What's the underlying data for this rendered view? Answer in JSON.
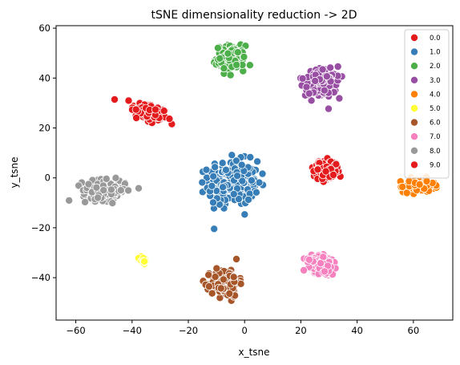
{
  "chart_data": {
    "type": "scatter",
    "title": "tSNE dimensionality reduction -> 2D",
    "xlabel": "x_tsne",
    "ylabel": "y_tsne",
    "xlim": [
      -67,
      74
    ],
    "ylim": [
      -57,
      61
    ],
    "xticks": [
      -60,
      -40,
      -20,
      0,
      20,
      40,
      60
    ],
    "yticks": [
      -40,
      -20,
      0,
      20,
      40,
      60
    ],
    "xtick_labels": [
      "−60",
      "−40",
      "−20",
      "0",
      "20",
      "40",
      "60"
    ],
    "ytick_labels": [
      "−40",
      "−20",
      "0",
      "20",
      "40",
      "60"
    ],
    "grid": false,
    "legend_position": "top-right",
    "series": [
      {
        "name": "0.0",
        "color": "#e41a1c",
        "center": [
          -34,
          26
        ],
        "spread": [
          6,
          3.5
        ],
        "tilt": -0.35,
        "count": 130
      },
      {
        "name": "1.0",
        "color": "#377eb8",
        "center": [
          -4,
          -2
        ],
        "spread": [
          8,
          8
        ],
        "tilt": 0,
        "count": 260
      },
      {
        "name": "2.0",
        "color": "#4daf4a",
        "center": [
          -5,
          48
        ],
        "spread": [
          4.5,
          4.5
        ],
        "tilt": 0,
        "count": 150
      },
      {
        "name": "3.0",
        "color": "#984ea3",
        "center": [
          27,
          38
        ],
        "spread": [
          5,
          5
        ],
        "tilt": 0.4,
        "count": 150
      },
      {
        "name": "4.0",
        "color": "#ff7f00",
        "center": [
          62,
          -3
        ],
        "spread": [
          5,
          2.5
        ],
        "tilt": 0,
        "count": 130
      },
      {
        "name": "5.0",
        "color": "#ffff33",
        "center": [
          -36,
          -33
        ],
        "spread": [
          1.2,
          1.5
        ],
        "tilt": 0,
        "count": 25
      },
      {
        "name": "6.0",
        "color": "#a65628",
        "center": [
          -7,
          -42
        ],
        "spread": [
          4.5,
          5
        ],
        "tilt": 0,
        "count": 170
      },
      {
        "name": "7.0",
        "color": "#f781bf",
        "center": [
          28,
          -35
        ],
        "spread": [
          5,
          3.5
        ],
        "tilt": -0.4,
        "count": 160
      },
      {
        "name": "8.0",
        "color": "#999999",
        "center": [
          -50,
          -5
        ],
        "spread": [
          7,
          3.5
        ],
        "tilt": 0,
        "count": 170
      },
      {
        "name": "9.0",
        "color": "#e41a1c",
        "center": [
          29,
          3
        ],
        "spread": [
          4,
          3.5
        ],
        "tilt": 0,
        "count": 120
      }
    ]
  }
}
